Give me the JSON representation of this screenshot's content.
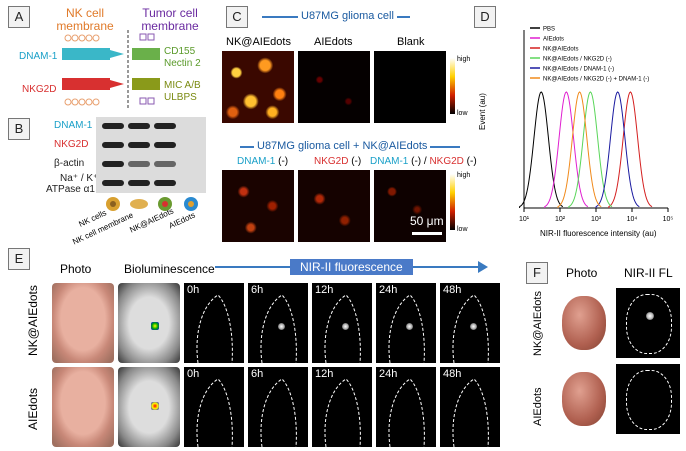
{
  "panelA": {
    "label": "A",
    "left_title": "NK cell membrane",
    "right_title": "Tumor cell membrane",
    "receptors": [
      "DNAM-1",
      "NKG2D"
    ],
    "ligands": [
      "CD155",
      "Nectin 2",
      "MIC A/B",
      "ULBPS"
    ]
  },
  "panelB": {
    "label": "B",
    "rows": [
      "DNAM-1",
      "NKG2D",
      "β-actin",
      "Na⁺ / K⁺",
      "ATPase α1"
    ],
    "lanes": [
      "NK cells",
      "NK cell membrane",
      "NK@AIEdots",
      "AIEdots"
    ]
  },
  "panelC": {
    "label": "C",
    "top_title": "U87MG glioma cell",
    "top_cols": [
      "NK@AIEdots",
      "AIEdots",
      "Blank"
    ],
    "bottom_title": "U87MG glioma cell + NK@AIEdots",
    "bottom_cols": [
      {
        "a": "DNAM-1",
        "b": " (-)"
      },
      {
        "a": "NKG2D",
        "b": " (-)"
      },
      {
        "a": "DNAM-1",
        "b": " (-) / ",
        "c": "NKG2D",
        "d": " (-)"
      }
    ],
    "scale": {
      "high": "high",
      "low": "low"
    },
    "scalebar": "50 μm"
  },
  "panelD": {
    "label": "D",
    "legend": [
      {
        "text": "PBS",
        "color": "#000000"
      },
      {
        "text": "AIEdots",
        "color": "#e01fd0"
      },
      {
        "text": "NK@AIEdots",
        "color": "#d42020"
      },
      {
        "text": "NK@AIEdots / NKG2D (-)",
        "color": "#5ad65a"
      },
      {
        "text": "NK@AIEdots / DNAM-1 (-)",
        "color": "#1a1aa0"
      },
      {
        "text": "NK@AIEdots / NKG2D (-) + DNAM-1 (-)",
        "color": "#f08a1c"
      }
    ],
    "ylabel": "Event (au)",
    "xlabel": "NIR-II fluorescence intensity (au)",
    "xticks": [
      "10¹",
      "10²",
      "10³",
      "10⁴",
      "10⁵"
    ]
  },
  "chart_data": {
    "type": "line",
    "xscale": "log",
    "xlim": [
      10,
      100000
    ],
    "ylabel": "Event (au)",
    "xlabel": "NIR-II fluorescence intensity (au)",
    "series": [
      {
        "name": "PBS",
        "peak": 30
      },
      {
        "name": "AIEdots",
        "peak": 150
      },
      {
        "name": "NK@AIEdots",
        "peak": 9000
      },
      {
        "name": "NK@AIEdots / NKG2D (-)",
        "peak": 700
      },
      {
        "name": "NK@AIEdots / DNAM-1 (-)",
        "peak": 4000
      },
      {
        "name": "NK@AIEdots / NKG2D (-) + DNAM-1 (-)",
        "peak": 350
      }
    ]
  },
  "panelE": {
    "label": "E",
    "photo": "Photo",
    "biolum": "Bioluminescence",
    "nir": "NIR-II fluorescence",
    "rows": [
      "NK@AIEdots",
      "AIEdots"
    ],
    "times": [
      "0h",
      "6h",
      "12h",
      "24h",
      "48h"
    ]
  },
  "panelF": {
    "label": "F",
    "photo": "Photo",
    "fl": "NIR-II FL",
    "rows": [
      "NK@AIEdots",
      "AIEdots"
    ]
  }
}
